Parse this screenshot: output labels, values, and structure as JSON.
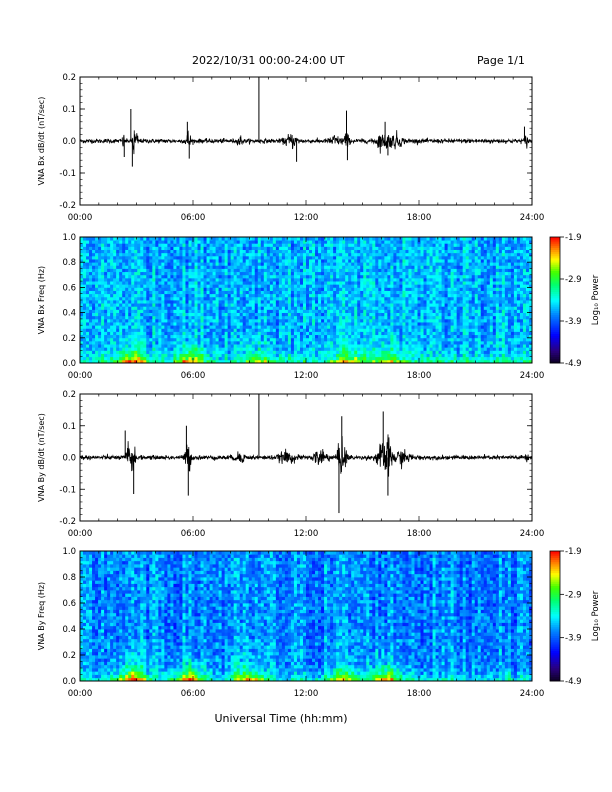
{
  "header": {
    "title": "2022/10/31  00:00-24:00 UT",
    "page": "Page 1/1"
  },
  "xaxis": {
    "label": "Universal Time (hh:mm)",
    "ticks": [
      "00:00",
      "06:00",
      "12:00",
      "18:00",
      "24:00"
    ],
    "range_hours": [
      0,
      24
    ]
  },
  "chart_data": [
    {
      "type": "line",
      "ylabel": "VNA Bx dB/dt (nT/sec)",
      "ylim": [
        -0.2,
        0.2
      ],
      "yticks": [
        "0.2",
        "0.1",
        "0.0",
        "-0.1",
        "-0.2"
      ],
      "noise_level": 0.006,
      "bursts": [
        {
          "t": 2.3,
          "w": 0.05,
          "a": 0.02
        },
        {
          "t": 2.85,
          "w": 0.06,
          "a": 0.055
        },
        {
          "t": 3.0,
          "w": 0.08,
          "a": 0.025
        },
        {
          "t": 5.75,
          "w": 0.12,
          "a": 0.03
        },
        {
          "t": 8.5,
          "w": 0.1,
          "a": 0.015
        },
        {
          "t": 11.2,
          "w": 0.3,
          "a": 0.018
        },
        {
          "t": 13.5,
          "w": 0.25,
          "a": 0.015
        },
        {
          "t": 14.1,
          "w": 0.15,
          "a": 0.028
        },
        {
          "t": 15.9,
          "w": 0.2,
          "a": 0.02
        },
        {
          "t": 16.3,
          "w": 0.15,
          "a": 0.025
        },
        {
          "t": 16.8,
          "w": 0.3,
          "a": 0.02
        },
        {
          "t": 23.7,
          "w": 0.1,
          "a": 0.015
        }
      ],
      "spikes": [
        {
          "t": 2.7,
          "v": 0.1
        },
        {
          "t": 2.78,
          "v": -0.08
        },
        {
          "t": 2.35,
          "v": -0.05
        },
        {
          "t": 5.7,
          "v": 0.06
        },
        {
          "t": 5.8,
          "v": -0.055
        },
        {
          "t": 9.5,
          "v": 0.21
        },
        {
          "t": 11.5,
          "v": -0.065
        },
        {
          "t": 14.15,
          "v": 0.095
        },
        {
          "t": 14.2,
          "v": -0.06
        },
        {
          "t": 16.2,
          "v": 0.06
        },
        {
          "t": 16.35,
          "v": -0.045
        },
        {
          "t": 23.6,
          "v": 0.045
        }
      ]
    },
    {
      "type": "heatmap",
      "ylabel": "VNA Bx Freq (Hz)",
      "ylim": [
        0,
        1.0
      ],
      "yticks": [
        "1.0",
        "0.8",
        "0.6",
        "0.4",
        "0.2",
        "0.0"
      ],
      "colorbar": {
        "label": "Log₁₀ Power",
        "ticks": [
          "-1.9",
          "-2.9",
          "-3.9",
          "-4.9"
        ],
        "range": [
          -4.9,
          -1.9
        ]
      },
      "background_level": -3.6,
      "low_freq_enhancements": [
        {
          "t": 2.8,
          "level": -2.3
        },
        {
          "t": 5.8,
          "level": -2.5
        },
        {
          "t": 9.5,
          "level": -2.9
        },
        {
          "t": 14.2,
          "level": -2.7
        },
        {
          "t": 16.3,
          "level": -2.8
        }
      ]
    },
    {
      "type": "line",
      "ylabel": "VNA By dB/dt (nT/sec)",
      "ylim": [
        -0.2,
        0.2
      ],
      "yticks": [
        "0.2",
        "0.1",
        "0.0",
        "-0.1",
        "-0.2"
      ],
      "noise_level": 0.006,
      "bursts": [
        {
          "t": 2.55,
          "w": 0.1,
          "a": 0.045
        },
        {
          "t": 2.8,
          "w": 0.12,
          "a": 0.05
        },
        {
          "t": 5.75,
          "w": 0.15,
          "a": 0.04
        },
        {
          "t": 8.5,
          "w": 0.3,
          "a": 0.012
        },
        {
          "t": 11.0,
          "w": 0.4,
          "a": 0.015
        },
        {
          "t": 12.8,
          "w": 0.3,
          "a": 0.03
        },
        {
          "t": 13.9,
          "w": 0.25,
          "a": 0.045
        },
        {
          "t": 15.9,
          "w": 0.2,
          "a": 0.03
        },
        {
          "t": 16.3,
          "w": 0.25,
          "a": 0.05
        },
        {
          "t": 17.0,
          "w": 0.5,
          "a": 0.018
        },
        {
          "t": 23.7,
          "w": 0.1,
          "a": 0.012
        }
      ],
      "spikes": [
        {
          "t": 2.4,
          "v": 0.085
        },
        {
          "t": 2.85,
          "v": -0.115
        },
        {
          "t": 5.65,
          "v": 0.1
        },
        {
          "t": 5.75,
          "v": -0.12
        },
        {
          "t": 9.5,
          "v": 0.205
        },
        {
          "t": 13.9,
          "v": 0.13
        },
        {
          "t": 13.75,
          "v": -0.175
        },
        {
          "t": 16.1,
          "v": 0.145
        },
        {
          "t": 16.35,
          "v": -0.12
        }
      ]
    },
    {
      "type": "heatmap",
      "ylabel": "VNA By Freq (Hz)",
      "ylim": [
        0,
        1.0
      ],
      "yticks": [
        "1.0",
        "0.8",
        "0.6",
        "0.4",
        "0.2",
        "0.0"
      ],
      "colorbar": {
        "label": "Log₁₀ Power",
        "ticks": [
          "-1.9",
          "-2.9",
          "-3.9",
          "-4.9"
        ],
        "range": [
          -4.9,
          -1.9
        ]
      },
      "background_level": -3.75,
      "low_freq_enhancements": [
        {
          "t": 2.8,
          "level": -2.3
        },
        {
          "t": 5.8,
          "level": -2.4
        },
        {
          "t": 9.0,
          "level": -2.6
        },
        {
          "t": 13.9,
          "level": -2.7
        },
        {
          "t": 16.2,
          "level": -2.4
        }
      ]
    }
  ]
}
